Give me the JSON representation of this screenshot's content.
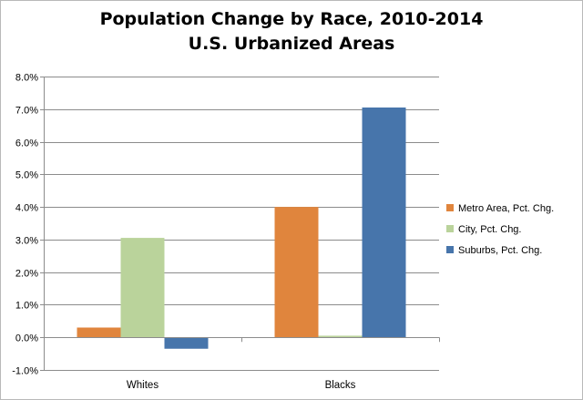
{
  "chart_data": {
    "type": "bar",
    "title": "Population Change by Race, 2010-2014",
    "subtitle": "U.S. Urbanized Areas",
    "categories": [
      "Whites",
      "Blacks"
    ],
    "series": [
      {
        "name": "Metro Area, Pct. Chg.",
        "values": [
          0.3,
          4.0
        ],
        "color": "#e0853d"
      },
      {
        "name": "City, Pct. Chg.",
        "values": [
          3.05,
          0.05
        ],
        "color": "#bad39b"
      },
      {
        "name": "Suburbs, Pct. Chg.",
        "values": [
          -0.35,
          7.05
        ],
        "color": "#4775ab"
      }
    ],
    "ylim": [
      -1,
      8
    ],
    "yticks": [
      "-1.0%",
      "0.0%",
      "1.0%",
      "2.0%",
      "3.0%",
      "4.0%",
      "5.0%",
      "6.0%",
      "7.0%",
      "8.0%"
    ],
    "xlabel": "",
    "ylabel": "",
    "grid": true,
    "legend_position": "right"
  }
}
